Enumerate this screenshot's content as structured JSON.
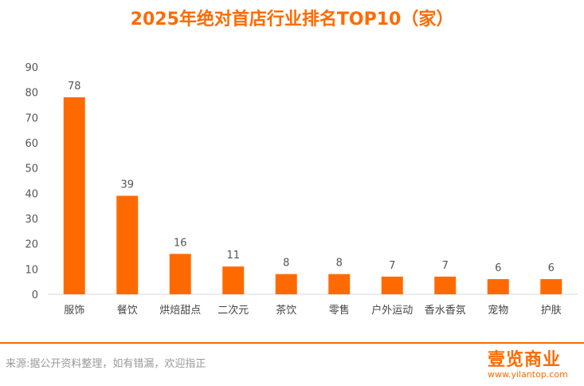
{
  "chart_data": {
    "type": "bar",
    "title": "2025年绝对首店行业排名TOP10（家）",
    "categories": [
      "服饰",
      "餐饮",
      "烘焙甜点",
      "二次元",
      "茶饮",
      "零售",
      "户外运动",
      "香水香氛",
      "宠物",
      "护肤"
    ],
    "values": [
      78,
      39,
      16,
      11,
      8,
      8,
      7,
      7,
      6,
      6
    ],
    "ylim": [
      0,
      90
    ],
    "yticks": [
      0,
      10,
      20,
      30,
      40,
      50,
      60,
      70,
      80,
      90
    ],
    "grid": false,
    "bar_color": "#ff6a00"
  },
  "footer": {
    "source": "来源:据公开资料整理，如有错漏，欢迎指正",
    "logo": "壹览商业",
    "url": "www.yilantop.com"
  }
}
